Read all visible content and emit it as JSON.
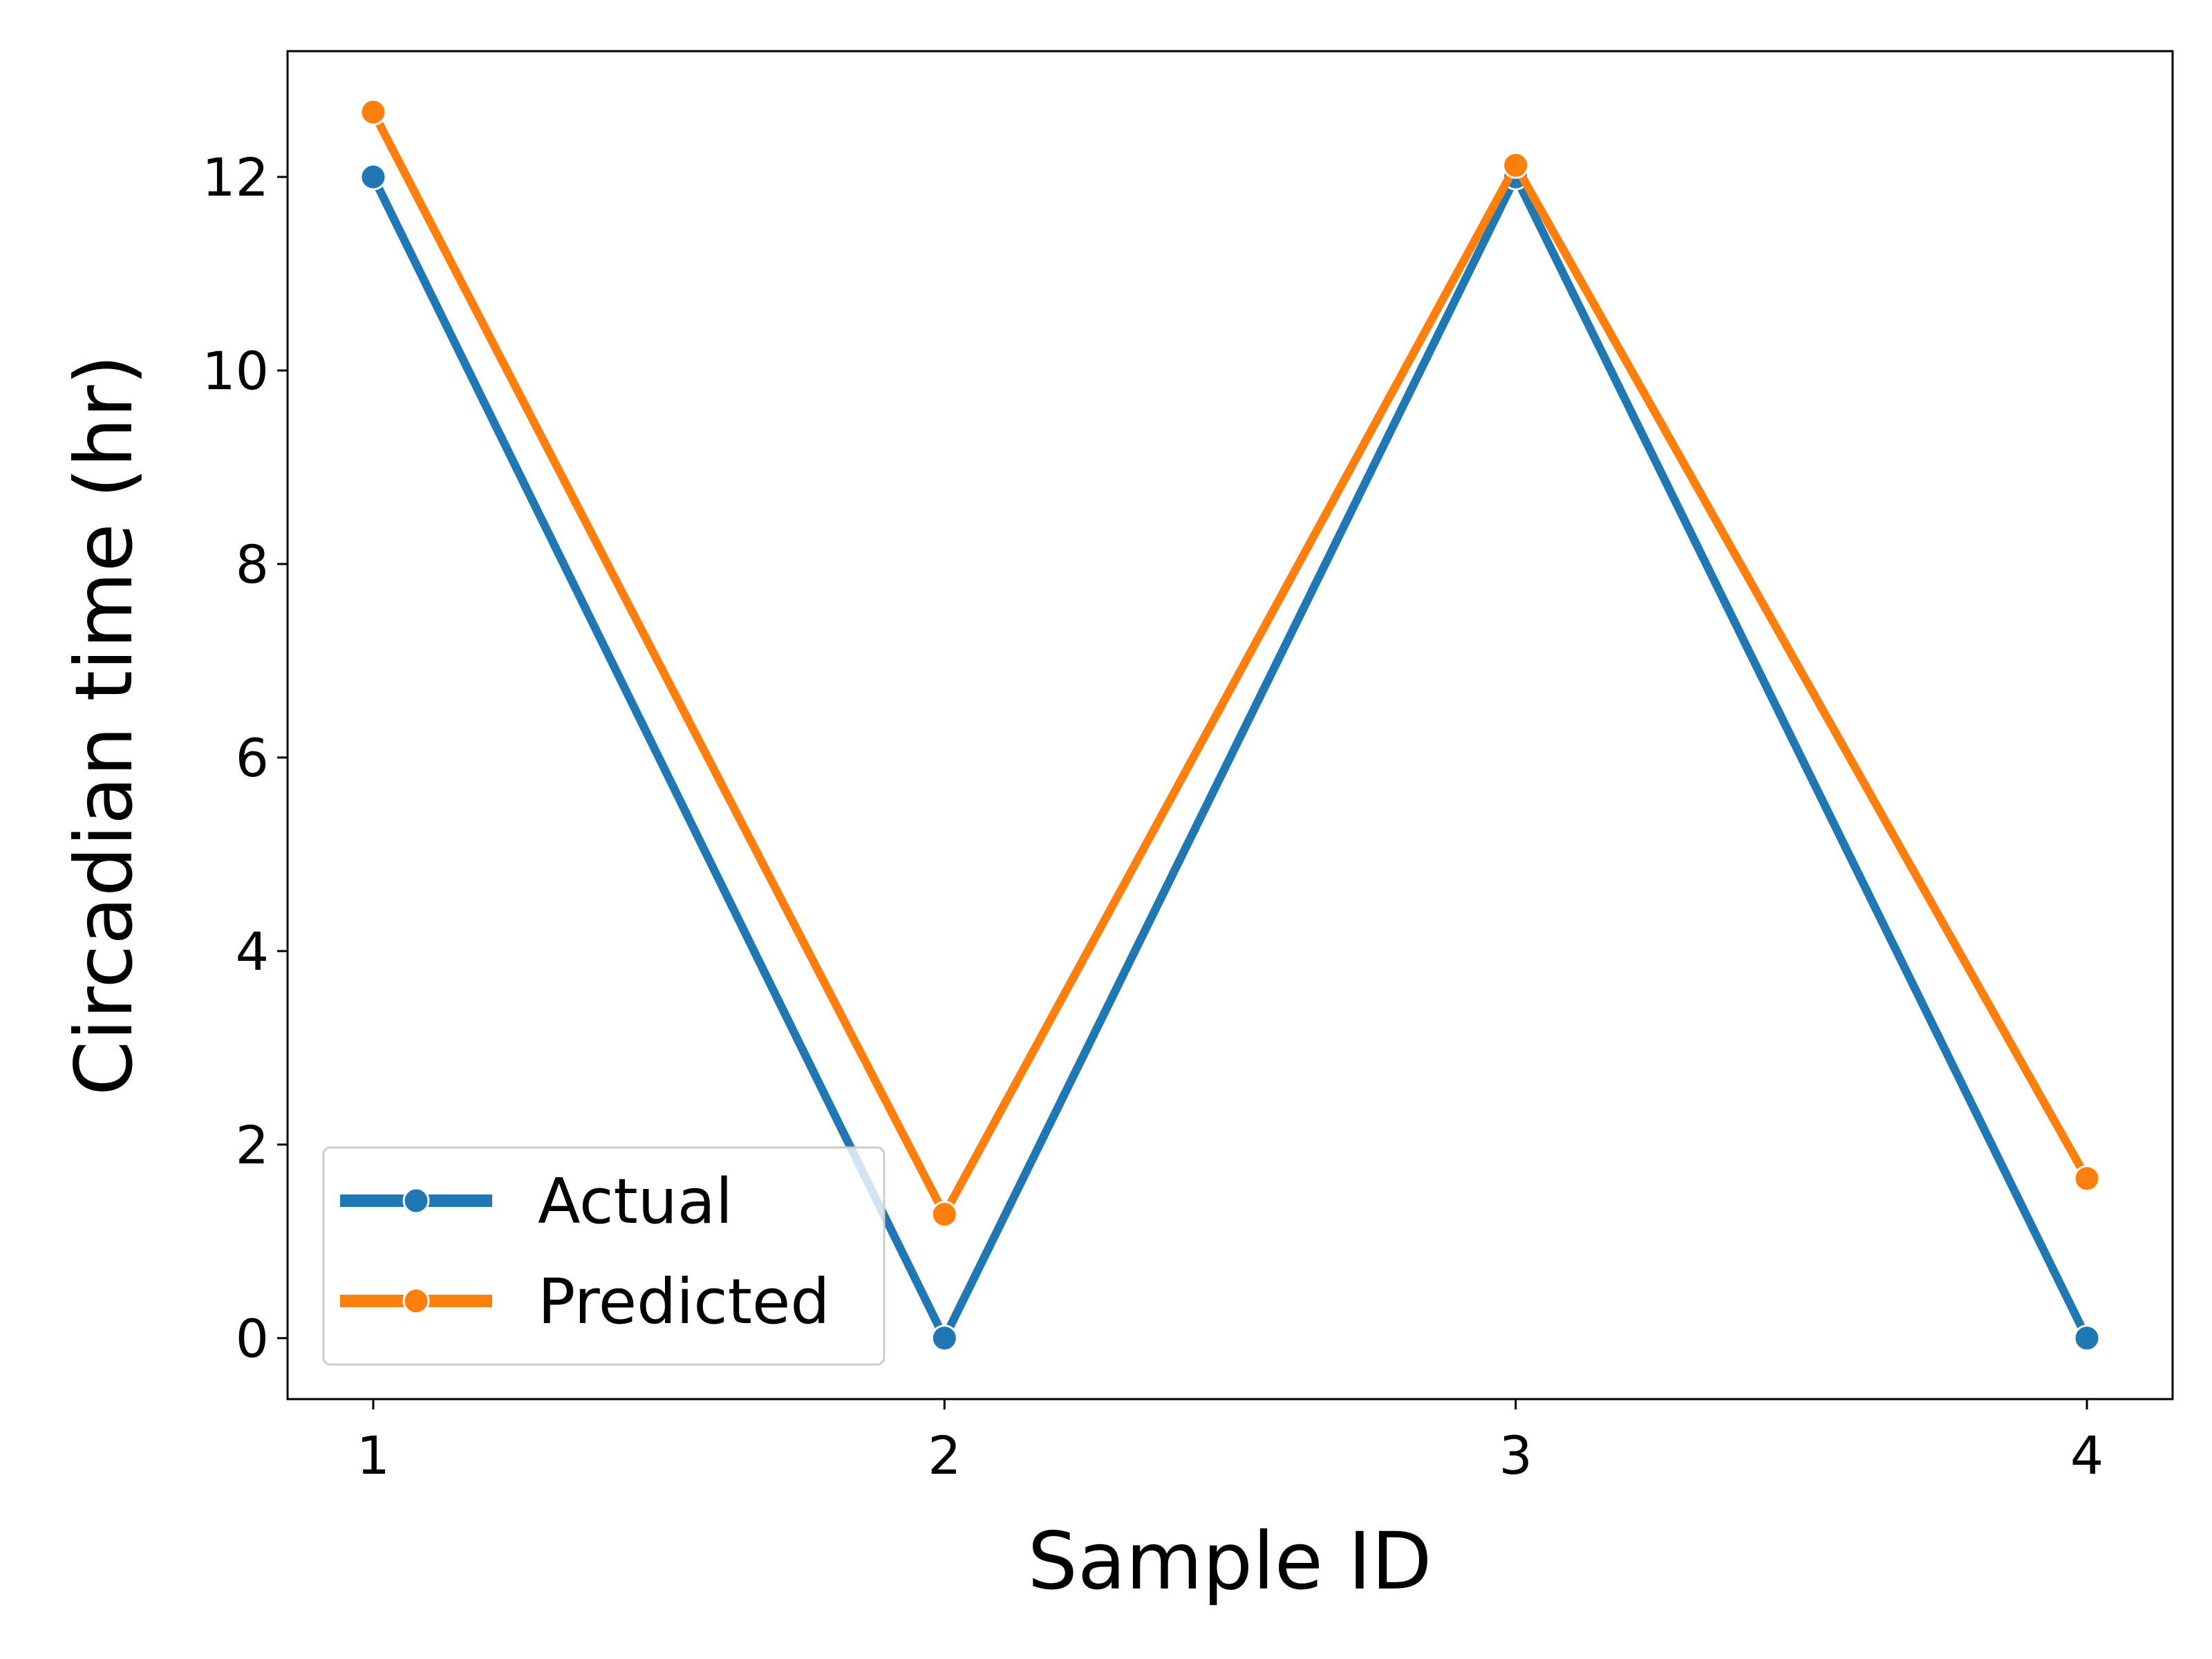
{
  "chart_data": {
    "type": "line",
    "x": [
      1,
      2,
      3,
      4
    ],
    "xticks": [
      "1",
      "2",
      "3",
      "4"
    ],
    "yticks": [
      "0",
      "2",
      "4",
      "6",
      "8",
      "10",
      "12"
    ],
    "xlabel": "Sample ID",
    "ylabel": "Circadian time (hr)",
    "xlim": [
      0.85,
      4.15
    ],
    "ylim": [
      -0.63,
      13.3
    ],
    "grid": false,
    "legend_position": "bottom-left",
    "series": [
      {
        "name": "Actual",
        "color": "#1f77b4",
        "marker": "circle",
        "values": [
          12,
          0,
          12,
          0
        ]
      },
      {
        "name": "Predicted",
        "color": "#ff7f0e",
        "marker": "circle",
        "values": [
          12.67,
          1.28,
          12.12,
          1.65
        ]
      }
    ]
  }
}
